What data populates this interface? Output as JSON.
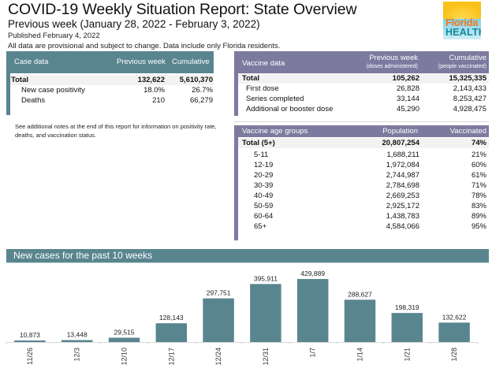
{
  "header": {
    "title": "COVID-19 Weekly Situation Report: State Overview",
    "subtitle": "Previous week (January 28, 2022 - February 3, 2022)",
    "published": "Published February 4, 2022",
    "disclaimer": "All data are provisional and subject to change. Data include only Florida residents.",
    "logo": {
      "line1": "Florida",
      "line2": "HEALTH"
    }
  },
  "case_data": {
    "headers": [
      "Case data",
      "Previous week",
      "Cumulative"
    ],
    "rows": [
      {
        "label": "Total",
        "previous_week": "132,622",
        "cumulative": "5,610,370",
        "total": true
      },
      {
        "label": "New case positivity",
        "previous_week": "18.0%",
        "cumulative": "26.7%"
      },
      {
        "label": "Deaths",
        "previous_week": "210",
        "cumulative": "66,279"
      }
    ]
  },
  "note": "See additional notes at the end of this report for information on positivity rate, deaths, and vaccination status.",
  "vaccine_data": {
    "headers": [
      "Vaccine data",
      "Previous week",
      "Cumulative"
    ],
    "subheaders": [
      "(doses administered)",
      "(people vaccinated)"
    ],
    "rows": [
      {
        "label": "Total",
        "previous_week": "105,262",
        "cumulative": "15,325,335",
        "total": true
      },
      {
        "label": "First dose",
        "previous_week": "26,828",
        "cumulative": "2,143,433"
      },
      {
        "label": "Series completed",
        "previous_week": "33,144",
        "cumulative": "8,253,427"
      },
      {
        "label": "Additional or booster dose",
        "previous_week": "45,290",
        "cumulative": "4,928,475"
      }
    ]
  },
  "age_groups": {
    "headers": [
      "Vaccine age groups",
      "Population",
      "Vaccinated"
    ],
    "rows": [
      {
        "label": "Total (5+)",
        "population": "20,807,254",
        "vaccinated": "74%",
        "total": true
      },
      {
        "label": "5-11",
        "population": "1,688,211",
        "vaccinated": "21%"
      },
      {
        "label": "12-19",
        "population": "1,972,084",
        "vaccinated": "60%"
      },
      {
        "label": "20-29",
        "population": "2,744,987",
        "vaccinated": "61%"
      },
      {
        "label": "30-39",
        "population": "2,784,698",
        "vaccinated": "71%"
      },
      {
        "label": "40-49",
        "population": "2,669,253",
        "vaccinated": "78%"
      },
      {
        "label": "50-59",
        "population": "2,925,172",
        "vaccinated": "83%"
      },
      {
        "label": "60-64",
        "population": "1,438,783",
        "vaccinated": "89%"
      },
      {
        "label": "65+",
        "population": "4,584,066",
        "vaccinated": "95%"
      }
    ]
  },
  "colors": {
    "teal": "#59858f",
    "purple": "#7d7a9f",
    "bar": "#59858f"
  },
  "chart_data": {
    "type": "bar",
    "title": "New cases for the past 10 weeks",
    "categories": [
      "11/26",
      "12/3",
      "12/10",
      "12/17",
      "12/24",
      "12/31",
      "1/7",
      "1/14",
      "1/21",
      "1/28"
    ],
    "values": [
      10873,
      13448,
      29515,
      128143,
      297751,
      395911,
      429889,
      288627,
      198319,
      132622
    ],
    "data_labels": [
      "10,873",
      "13,448",
      "29,515",
      "128,143",
      "297,751",
      "395,911",
      "429,889",
      "288,627",
      "198,319",
      "132,622"
    ],
    "xlabel": "",
    "ylabel": "",
    "ylim": [
      0,
      430000
    ],
    "grid": false,
    "legend": "none"
  }
}
